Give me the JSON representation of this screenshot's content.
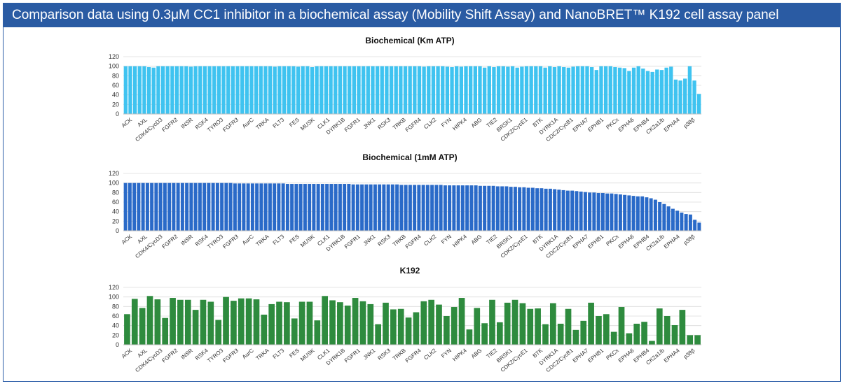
{
  "header": {
    "title": "Comparison data using 0.3μM CC1 inhibitor in a biochemical assay (Mobility Shift Assay) and NanoBRET™ K192 cell assay panel"
  },
  "chart_data": [
    {
      "type": "bar",
      "title": "Biochemical (Km ATP)",
      "color": "#3fc3f0",
      "ylim": [
        0,
        120
      ],
      "yticks": [
        0,
        20,
        40,
        60,
        80,
        100,
        120
      ],
      "tick_labels": [
        "ACK",
        "AXL",
        "CDK4/CycD3",
        "FGFR2",
        "INSR",
        "RSK4",
        "TYRO3",
        "FGFR3",
        "AurC",
        "TRKA",
        "FLT3",
        "FES",
        "MUSK",
        "CLK1",
        "DYRK1B",
        "FGFR1",
        "JNK1",
        "RSK3",
        "TRKB",
        "FGFR4",
        "CLK2",
        "FYN",
        "HIPK4",
        "ABG",
        "TIE2",
        "BRSK1",
        "CDK2/CycE1",
        "BTK",
        "DYRK1A",
        "CDC2/CycB1",
        "EPHA7",
        "EPHB1",
        "PKCx",
        "EPHA6",
        "EPHB4",
        "CK2a1/b",
        "EPHA4",
        "p38β"
      ],
      "values": [
        100,
        100,
        100,
        100,
        100,
        98,
        97,
        100,
        100,
        100,
        100,
        100,
        100,
        100,
        99,
        100,
        100,
        100,
        100,
        100,
        100,
        100,
        100,
        100,
        100,
        100,
        100,
        100,
        100,
        100,
        100,
        100,
        99,
        100,
        100,
        100,
        100,
        99,
        100,
        100,
        98,
        100,
        100,
        100,
        100,
        100,
        100,
        100,
        100,
        100,
        100,
        100,
        100,
        100,
        100,
        100,
        100,
        100,
        100,
        100,
        100,
        100,
        100,
        100,
        99,
        100,
        100,
        100,
        100,
        99,
        98,
        100,
        99,
        100,
        100,
        100,
        100,
        97,
        100,
        98,
        100,
        100,
        99,
        100,
        97,
        99,
        100,
        100,
        100,
        100,
        97,
        100,
        98,
        100,
        98,
        97,
        99,
        100,
        100,
        100,
        98,
        92,
        100,
        100,
        100,
        98,
        97,
        96,
        90,
        97,
        100,
        95,
        90,
        88,
        93,
        92,
        97,
        99,
        72,
        70,
        74,
        100,
        70,
        42
      ]
    },
    {
      "type": "bar",
      "title": "Biochemical (1mM ATP)",
      "color": "#2a6ac8",
      "ylim": [
        0,
        120
      ],
      "yticks": [
        0,
        20,
        40,
        60,
        80,
        100,
        120
      ],
      "tick_labels": [
        "ACK",
        "AXL",
        "CDK4/CycD3",
        "FGFR2",
        "INSR",
        "RSK4",
        "TYRO3",
        "FGFR3",
        "AurC",
        "TRKA",
        "FLT3",
        "FES",
        "MUSK",
        "CLK1",
        "DYRK1B",
        "FGFR1",
        "JNK1",
        "RSK3",
        "TRKB",
        "FGFR4",
        "CLK2",
        "FYN",
        "HIPK4",
        "ABG",
        "TIE2",
        "BRSK1",
        "CDK2/CycE1",
        "BTK",
        "DYRK1A",
        "CDC2/CycB1",
        "EPHA7",
        "EPHB1",
        "PKCx",
        "EPHA6",
        "EPHB4",
        "CK2a1/b",
        "EPHA4",
        "p38β"
      ],
      "values": [
        100,
        100,
        100,
        100,
        100,
        100,
        100,
        100,
        100,
        100,
        100,
        100,
        100,
        100,
        100,
        100,
        100,
        100,
        100,
        100,
        100,
        100,
        100,
        100,
        100,
        99,
        99,
        99,
        99,
        99,
        99,
        99,
        99,
        99,
        99,
        99,
        99,
        98,
        98,
        98,
        98,
        98,
        98,
        98,
        98,
        98,
        98,
        98,
        98,
        98,
        98,
        98,
        97,
        97,
        97,
        97,
        97,
        97,
        97,
        97,
        97,
        97,
        97,
        96,
        96,
        96,
        96,
        96,
        96,
        96,
        96,
        96,
        96,
        95,
        95,
        95,
        95,
        95,
        95,
        95,
        95,
        94,
        94,
        94,
        94,
        93,
        93,
        93,
        92,
        92,
        91,
        91,
        90,
        90,
        89,
        89,
        88,
        88,
        87,
        86,
        85,
        84,
        84,
        83,
        82,
        81,
        80,
        80,
        79,
        79,
        78,
        78,
        77,
        76,
        75,
        74,
        73,
        72,
        72,
        70,
        68,
        65,
        60,
        56,
        51,
        46,
        42,
        38,
        35,
        34,
        23,
        17
      ]
    },
    {
      "type": "bar",
      "title": "K192",
      "color": "#2e8b3e",
      "ylim": [
        0,
        120
      ],
      "yticks": [
        0,
        20,
        40,
        60,
        80,
        100,
        120
      ],
      "tick_labels": [
        "ACK",
        "AXL",
        "CDK4/CycD3",
        "FGFR2",
        "INSR",
        "RSK4",
        "TYRO3",
        "FGFR3",
        "AurC",
        "TRKA",
        "FLT3",
        "FES",
        "MUSK",
        "CLK1",
        "DYRK1B",
        "FGFR1",
        "JNK1",
        "RSK3",
        "TRKB",
        "FGFR4",
        "CLK2",
        "FYN",
        "HIPK4",
        "ABG",
        "TIE2",
        "BRSK1",
        "CDK2/CycE1",
        "BTK",
        "DYRK1A",
        "CDC2/CycB1",
        "EPHA7",
        "EPHB1",
        "PKCx",
        "EPHA6",
        "EPHB4",
        "CK2a1/b",
        "EPHA4",
        "p38β"
      ],
      "values": [
        64,
        96,
        77,
        102,
        95,
        56,
        98,
        94,
        94,
        73,
        94,
        90,
        52,
        100,
        92,
        97,
        97,
        95,
        63,
        85,
        90,
        89,
        55,
        90,
        90,
        51,
        102,
        93,
        89,
        82,
        98,
        91,
        85,
        43,
        88,
        74,
        75,
        57,
        68,
        91,
        94,
        84,
        60,
        79,
        98,
        32,
        77,
        45,
        94,
        47,
        88,
        94,
        87,
        75,
        76,
        43,
        87,
        44,
        75,
        31,
        50,
        88,
        60,
        64,
        27,
        79,
        24,
        44,
        48,
        8,
        76,
        60,
        41,
        73,
        20,
        20
      ]
    }
  ]
}
